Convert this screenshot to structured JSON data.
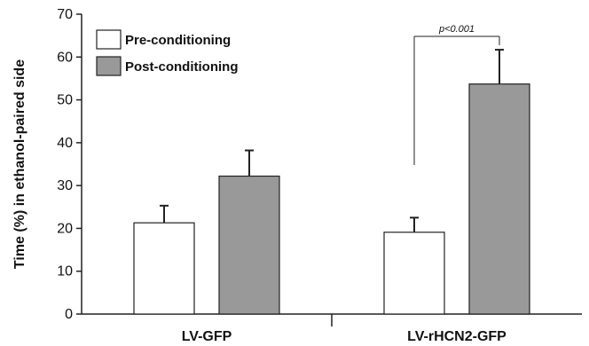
{
  "chart_data": {
    "type": "bar",
    "title": "",
    "xlabel": "",
    "ylabel": "Time (%) in ethanol-paired side",
    "ylim": [
      0,
      70
    ],
    "yticks": [
      0,
      10,
      20,
      30,
      40,
      50,
      60,
      70
    ],
    "categories": [
      "LV-GFP",
      "LV-rHCN2-GFP"
    ],
    "series": [
      {
        "name": "Pre-conditioning",
        "values": [
          21.3,
          19.1
        ],
        "errors": [
          4.0,
          3.4
        ],
        "color": "#ffffff"
      },
      {
        "name": "Post-conditioning",
        "values": [
          32.2,
          53.7
        ],
        "errors": [
          6.0,
          8.0
        ],
        "color": "#999999"
      }
    ],
    "legend_position": "top-left",
    "grid": false,
    "annotations": [
      {
        "text": "p<0.001",
        "between": [
          "LV-rHCN2-GFP/Pre-conditioning",
          "LV-rHCN2-GFP/Post-conditioning"
        ]
      }
    ]
  }
}
